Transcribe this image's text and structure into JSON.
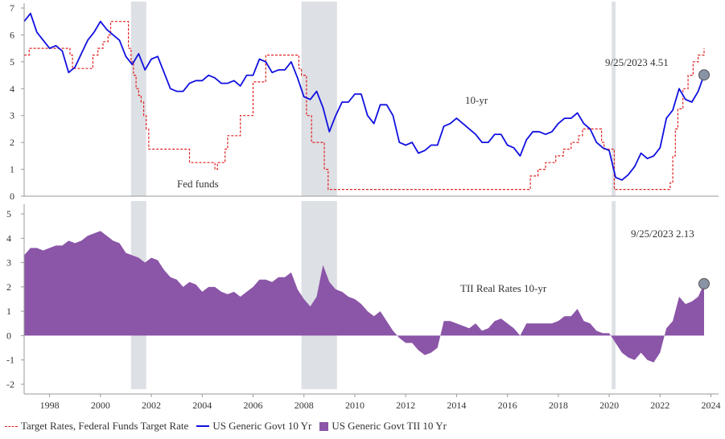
{
  "chart_data": [
    {
      "type": "line",
      "title": "",
      "xlabel": "",
      "ylabel": "",
      "xlim": [
        1997.0,
        2024.3
      ],
      "ylim": [
        0,
        7
      ],
      "y_ticks": [
        "0",
        "1",
        "2",
        "3",
        "4",
        "5",
        "6",
        "7"
      ],
      "series": [
        {
          "name": "US Generic Govt 10 Yr",
          "color": "#1010e0",
          "style": "solid",
          "x": [
            1997.0,
            1997.25,
            1997.5,
            1997.75,
            1998.0,
            1998.25,
            1998.5,
            1998.75,
            1999.0,
            1999.25,
            1999.5,
            1999.75,
            2000.0,
            2000.25,
            2000.5,
            2000.75,
            2001.0,
            2001.25,
            2001.5,
            2001.75,
            2002.0,
            2002.25,
            2002.5,
            2002.75,
            2003.0,
            2003.25,
            2003.5,
            2003.75,
            2004.0,
            2004.25,
            2004.5,
            2004.75,
            2005.0,
            2005.25,
            2005.5,
            2005.75,
            2006.0,
            2006.25,
            2006.5,
            2006.75,
            2007.0,
            2007.25,
            2007.5,
            2007.75,
            2008.0,
            2008.25,
            2008.5,
            2008.75,
            2009.0,
            2009.25,
            2009.5,
            2009.75,
            2010.0,
            2010.25,
            2010.5,
            2010.75,
            2011.0,
            2011.25,
            2011.5,
            2011.75,
            2012.0,
            2012.25,
            2012.5,
            2012.75,
            2013.0,
            2013.25,
            2013.5,
            2013.75,
            2014.0,
            2014.25,
            2014.5,
            2014.75,
            2015.0,
            2015.25,
            2015.5,
            2015.75,
            2016.0,
            2016.25,
            2016.5,
            2016.75,
            2017.0,
            2017.25,
            2017.5,
            2017.75,
            2018.0,
            2018.25,
            2018.5,
            2018.75,
            2019.0,
            2019.25,
            2019.5,
            2019.75,
            2020.0,
            2020.25,
            2020.5,
            2020.75,
            2021.0,
            2021.25,
            2021.5,
            2021.75,
            2022.0,
            2022.25,
            2022.5,
            2022.75,
            2023.0,
            2023.25,
            2023.5,
            2023.73
          ],
          "values": [
            6.5,
            6.8,
            6.1,
            5.8,
            5.5,
            5.6,
            5.4,
            4.6,
            4.8,
            5.3,
            5.8,
            6.1,
            6.5,
            6.2,
            6.0,
            5.8,
            5.2,
            4.9,
            5.3,
            4.7,
            5.1,
            5.2,
            4.6,
            4.0,
            3.9,
            3.9,
            4.2,
            4.3,
            4.3,
            4.5,
            4.4,
            4.2,
            4.2,
            4.3,
            4.1,
            4.5,
            4.5,
            5.1,
            5.0,
            4.6,
            4.7,
            4.7,
            5.0,
            4.4,
            3.7,
            3.6,
            3.9,
            3.3,
            2.4,
            3.0,
            3.5,
            3.5,
            3.8,
            3.8,
            3.0,
            2.7,
            3.4,
            3.4,
            3.0,
            2.0,
            1.9,
            2.0,
            1.6,
            1.7,
            1.9,
            1.9,
            2.6,
            2.7,
            2.9,
            2.7,
            2.5,
            2.3,
            2.0,
            2.0,
            2.3,
            2.3,
            1.9,
            1.8,
            1.5,
            2.1,
            2.4,
            2.4,
            2.3,
            2.4,
            2.7,
            2.9,
            2.9,
            3.1,
            2.7,
            2.5,
            2.0,
            1.8,
            1.7,
            0.7,
            0.6,
            0.8,
            1.1,
            1.6,
            1.4,
            1.5,
            1.8,
            2.9,
            3.2,
            4.0,
            3.6,
            3.5,
            3.9,
            4.51
          ]
        },
        {
          "name": "Target Rates, Federal Funds Target Rate",
          "color": "#e02020",
          "style": "dashed",
          "x": [
            1997.0,
            1997.2,
            1998.7,
            1998.8,
            1998.9,
            1999.5,
            1999.7,
            1999.9,
            2000.1,
            2000.3,
            2000.4,
            2001.0,
            2001.1,
            2001.2,
            2001.3,
            2001.4,
            2001.5,
            2001.6,
            2001.7,
            2001.8,
            2001.9,
            2002.9,
            2003.5,
            2004.5,
            2004.6,
            2004.9,
            2005.0,
            2005.5,
            2006.0,
            2006.5,
            2007.7,
            2007.8,
            2007.9,
            2008.1,
            2008.3,
            2008.8,
            2008.95,
            2015.9,
            2016.9,
            2017.2,
            2017.5,
            2017.9,
            2018.2,
            2018.5,
            2018.8,
            2018.95,
            2019.5,
            2019.7,
            2019.8,
            2020.2,
            2020.25,
            2022.2,
            2022.4,
            2022.5,
            2022.6,
            2022.7,
            2022.9,
            2023.1,
            2023.3,
            2023.5,
            2023.73
          ],
          "values": [
            5.25,
            5.5,
            5.5,
            5.25,
            4.75,
            4.75,
            5.25,
            5.5,
            5.75,
            6.0,
            6.5,
            6.5,
            5.5,
            5.0,
            4.5,
            4.0,
            3.75,
            3.5,
            3.0,
            2.5,
            1.75,
            1.75,
            1.25,
            1.0,
            1.25,
            1.75,
            2.25,
            3.0,
            4.25,
            5.25,
            5.25,
            4.75,
            4.5,
            3.0,
            2.0,
            1.0,
            0.25,
            0.25,
            0.75,
            1.0,
            1.25,
            1.5,
            1.75,
            2.0,
            2.25,
            2.5,
            2.5,
            2.0,
            1.75,
            0.25,
            0.25,
            0.25,
            0.5,
            1.5,
            2.5,
            3.25,
            4.0,
            4.5,
            5.0,
            5.25,
            5.5
          ]
        }
      ],
      "annotations": {
        "latest_label": "9/25/2023 4.51",
        "series_label": "10-yr",
        "fed_label": "Fed funds"
      }
    },
    {
      "type": "area",
      "title": "",
      "xlabel": "",
      "ylabel": "",
      "xlim": [
        1997.0,
        2024.3
      ],
      "ylim": [
        -2.2,
        5.2
      ],
      "y_ticks": [
        "-2",
        "-1",
        "0",
        "1",
        "2",
        "3",
        "4",
        "5"
      ],
      "series": [
        {
          "name": "US Generic Govt TII 10 Yr",
          "color": "#8b55a8",
          "x": [
            1997.0,
            1997.25,
            1997.5,
            1997.75,
            1998.0,
            1998.25,
            1998.5,
            1998.75,
            1999.0,
            1999.25,
            1999.5,
            1999.75,
            2000.0,
            2000.25,
            2000.5,
            2000.75,
            2001.0,
            2001.25,
            2001.5,
            2001.75,
            2002.0,
            2002.25,
            2002.5,
            2002.75,
            2003.0,
            2003.25,
            2003.5,
            2003.75,
            2004.0,
            2004.25,
            2004.5,
            2004.75,
            2005.0,
            2005.25,
            2005.5,
            2005.75,
            2006.0,
            2006.25,
            2006.5,
            2006.75,
            2007.0,
            2007.25,
            2007.5,
            2007.75,
            2008.0,
            2008.25,
            2008.5,
            2008.75,
            2009.0,
            2009.25,
            2009.5,
            2009.75,
            2010.0,
            2010.25,
            2010.5,
            2010.75,
            2011.0,
            2011.25,
            2011.5,
            2011.75,
            2012.0,
            2012.25,
            2012.5,
            2012.75,
            2013.0,
            2013.25,
            2013.5,
            2013.75,
            2014.0,
            2014.25,
            2014.5,
            2014.75,
            2015.0,
            2015.25,
            2015.5,
            2015.75,
            2016.0,
            2016.25,
            2016.5,
            2016.75,
            2017.0,
            2017.25,
            2017.5,
            2017.75,
            2018.0,
            2018.25,
            2018.5,
            2018.75,
            2019.0,
            2019.25,
            2019.5,
            2019.75,
            2020.0,
            2020.25,
            2020.5,
            2020.75,
            2021.0,
            2021.25,
            2021.5,
            2021.75,
            2022.0,
            2022.25,
            2022.5,
            2022.75,
            2023.0,
            2023.25,
            2023.5,
            2023.73
          ],
          "values": [
            3.3,
            3.6,
            3.6,
            3.5,
            3.6,
            3.7,
            3.7,
            3.9,
            3.8,
            3.9,
            4.1,
            4.2,
            4.3,
            4.1,
            3.9,
            3.8,
            3.4,
            3.3,
            3.2,
            3.0,
            3.2,
            3.1,
            2.7,
            2.4,
            2.3,
            2.0,
            2.2,
            2.1,
            1.8,
            2.0,
            2.0,
            1.8,
            1.7,
            1.8,
            1.6,
            1.8,
            2.0,
            2.3,
            2.3,
            2.2,
            2.4,
            2.4,
            2.6,
            1.9,
            1.5,
            1.2,
            1.6,
            2.9,
            2.2,
            1.9,
            1.8,
            1.6,
            1.5,
            1.3,
            1.0,
            0.8,
            1.0,
            0.6,
            0.2,
            -0.1,
            -0.3,
            -0.3,
            -0.6,
            -0.8,
            -0.7,
            -0.5,
            0.6,
            0.6,
            0.5,
            0.4,
            0.3,
            0.5,
            0.2,
            0.3,
            0.6,
            0.7,
            0.5,
            0.3,
            0.0,
            0.5,
            0.5,
            0.5,
            0.5,
            0.5,
            0.6,
            0.8,
            0.8,
            1.1,
            0.6,
            0.5,
            0.2,
            0.1,
            0.1,
            -0.3,
            -0.7,
            -0.9,
            -1.0,
            -0.7,
            -1.0,
            -1.1,
            -0.7,
            0.3,
            0.6,
            1.6,
            1.3,
            1.4,
            1.6,
            2.13
          ]
        }
      ],
      "annotations": {
        "latest_label": "9/25/2023 2.13",
        "series_label": "TII Real Rates 10-yr"
      }
    }
  ],
  "x_axis": {
    "tick_labels": [
      "1998",
      "2000",
      "2002",
      "2004",
      "2006",
      "2008",
      "2010",
      "2012",
      "2014",
      "2016",
      "2018",
      "2020",
      "2022",
      "2024"
    ],
    "tick_values": [
      1998,
      2000,
      2002,
      2004,
      2006,
      2008,
      2010,
      2012,
      2014,
      2016,
      2018,
      2020,
      2022,
      2024
    ]
  },
  "recessions": [
    {
      "start": 2001.2,
      "end": 2001.8
    },
    {
      "start": 2007.9,
      "end": 2009.3
    },
    {
      "start": 2020.1,
      "end": 2020.25
    }
  ],
  "colors": {
    "recession": "#dde0e5",
    "marker": "#8893a6",
    "axis": "#999999"
  },
  "legend": {
    "items": [
      {
        "label": "Target Rates, Federal Funds Target Rate"
      },
      {
        "label": "US Generic Govt 10 Yr"
      },
      {
        "label": "US Generic Govt TII 10 Yr"
      }
    ]
  }
}
